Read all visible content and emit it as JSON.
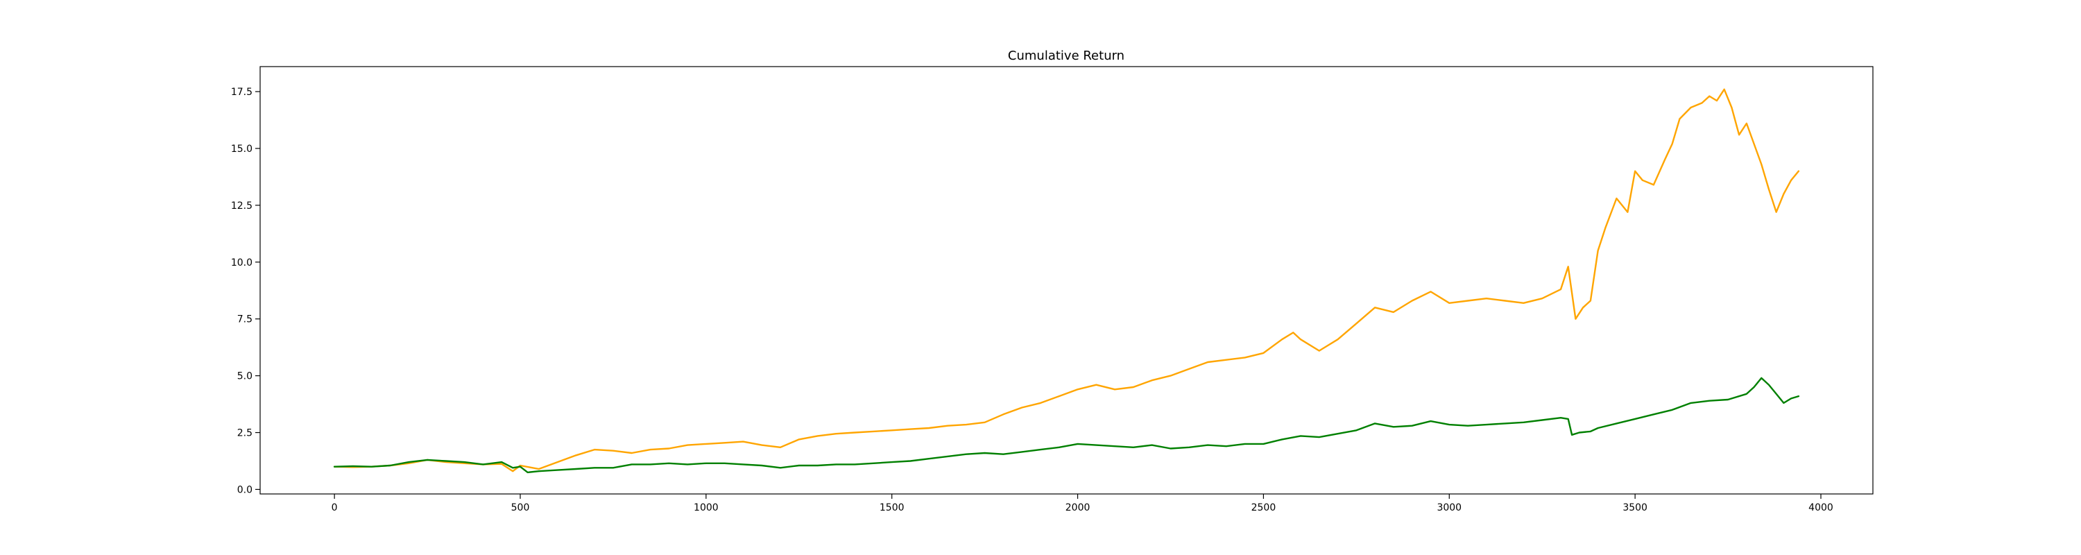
{
  "chart_data": {
    "type": "line",
    "title": "Cumulative Return",
    "xlabel": "",
    "ylabel": "",
    "xlim": [
      -200,
      4140
    ],
    "ylim": [
      -0.2,
      18.6
    ],
    "xticks": [
      0,
      500,
      1000,
      1500,
      2000,
      2500,
      3000,
      3500,
      4000
    ],
    "yticks": [
      0.0,
      2.5,
      5.0,
      7.5,
      10.0,
      12.5,
      15.0,
      17.5
    ],
    "xtick_labels": [
      "0",
      "500",
      "1000",
      "1500",
      "2000",
      "2500",
      "3000",
      "3500",
      "4000"
    ],
    "ytick_labels": [
      "0.0",
      "2.5",
      "5.0",
      "7.5",
      "10.0",
      "12.5",
      "15.0",
      "17.5"
    ],
    "grid": false,
    "series": [
      {
        "color": "#ffa500",
        "x": [
          0,
          50,
          100,
          150,
          200,
          250,
          300,
          350,
          400,
          450,
          480,
          500,
          550,
          600,
          650,
          700,
          750,
          800,
          850,
          900,
          950,
          1000,
          1050,
          1100,
          1150,
          1200,
          1250,
          1300,
          1350,
          1400,
          1450,
          1500,
          1550,
          1600,
          1650,
          1700,
          1750,
          1800,
          1850,
          1900,
          1950,
          2000,
          2050,
          2100,
          2150,
          2200,
          2250,
          2300,
          2350,
          2400,
          2450,
          2500,
          2550,
          2580,
          2600,
          2650,
          2700,
          2750,
          2800,
          2850,
          2900,
          2950,
          3000,
          3050,
          3100,
          3150,
          3200,
          3250,
          3300,
          3320,
          3340,
          3360,
          3380,
          3400,
          3420,
          3450,
          3480,
          3500,
          3520,
          3550,
          3580,
          3600,
          3620,
          3650,
          3680,
          3700,
          3720,
          3740,
          3760,
          3780,
          3800,
          3820,
          3840,
          3860,
          3880,
          3900,
          3920,
          3940
        ],
        "values": [
          1.0,
          0.98,
          1.0,
          1.05,
          1.15,
          1.3,
          1.2,
          1.15,
          1.1,
          1.12,
          0.8,
          1.05,
          0.9,
          1.2,
          1.5,
          1.75,
          1.7,
          1.6,
          1.75,
          1.8,
          1.95,
          2.0,
          2.05,
          2.1,
          1.95,
          1.85,
          2.2,
          2.35,
          2.45,
          2.5,
          2.55,
          2.6,
          2.65,
          2.7,
          2.8,
          2.85,
          2.95,
          3.3,
          3.6,
          3.8,
          4.1,
          4.4,
          4.6,
          4.4,
          4.5,
          4.8,
          5.0,
          5.3,
          5.6,
          5.7,
          5.8,
          6.0,
          6.6,
          6.9,
          6.6,
          6.1,
          6.6,
          7.3,
          8.0,
          7.8,
          8.3,
          8.7,
          8.2,
          8.3,
          8.4,
          8.3,
          8.2,
          8.4,
          8.8,
          9.8,
          7.5,
          8.0,
          8.3,
          10.5,
          11.5,
          12.8,
          12.2,
          14.0,
          13.6,
          13.4,
          14.5,
          15.2,
          16.3,
          16.8,
          17.0,
          17.3,
          17.1,
          17.6,
          16.8,
          15.6,
          16.1,
          15.2,
          14.3,
          13.2,
          12.2,
          13.0,
          13.6,
          14.0
        ]
      },
      {
        "color": "#008000",
        "x": [
          0,
          50,
          100,
          150,
          200,
          250,
          300,
          350,
          400,
          450,
          480,
          500,
          520,
          550,
          600,
          650,
          700,
          750,
          800,
          850,
          900,
          950,
          1000,
          1050,
          1100,
          1150,
          1200,
          1250,
          1300,
          1350,
          1400,
          1450,
          1500,
          1550,
          1600,
          1650,
          1700,
          1750,
          1800,
          1850,
          1900,
          1950,
          2000,
          2050,
          2100,
          2150,
          2200,
          2250,
          2300,
          2350,
          2400,
          2450,
          2500,
          2550,
          2600,
          2650,
          2700,
          2750,
          2800,
          2850,
          2900,
          2950,
          3000,
          3050,
          3100,
          3150,
          3200,
          3250,
          3300,
          3320,
          3330,
          3350,
          3380,
          3400,
          3450,
          3500,
          3550,
          3600,
          3650,
          3700,
          3750,
          3800,
          3820,
          3840,
          3860,
          3880,
          3900,
          3920,
          3940
        ],
        "values": [
          1.0,
          1.02,
          1.0,
          1.05,
          1.2,
          1.3,
          1.25,
          1.2,
          1.1,
          1.2,
          0.95,
          1.0,
          0.75,
          0.8,
          0.85,
          0.9,
          0.95,
          0.95,
          1.1,
          1.1,
          1.15,
          1.1,
          1.15,
          1.15,
          1.1,
          1.05,
          0.95,
          1.05,
          1.05,
          1.1,
          1.1,
          1.15,
          1.2,
          1.25,
          1.35,
          1.45,
          1.55,
          1.6,
          1.55,
          1.65,
          1.75,
          1.85,
          2.0,
          1.95,
          1.9,
          1.85,
          1.95,
          1.8,
          1.85,
          1.95,
          1.9,
          2.0,
          2.0,
          2.2,
          2.35,
          2.3,
          2.45,
          2.6,
          2.9,
          2.75,
          2.8,
          3.0,
          2.85,
          2.8,
          2.85,
          2.9,
          2.95,
          3.05,
          3.15,
          3.1,
          2.4,
          2.5,
          2.55,
          2.7,
          2.9,
          3.1,
          3.3,
          3.5,
          3.8,
          3.9,
          3.95,
          4.2,
          4.5,
          4.9,
          4.6,
          4.2,
          3.8,
          4.0,
          4.1
        ]
      }
    ]
  }
}
